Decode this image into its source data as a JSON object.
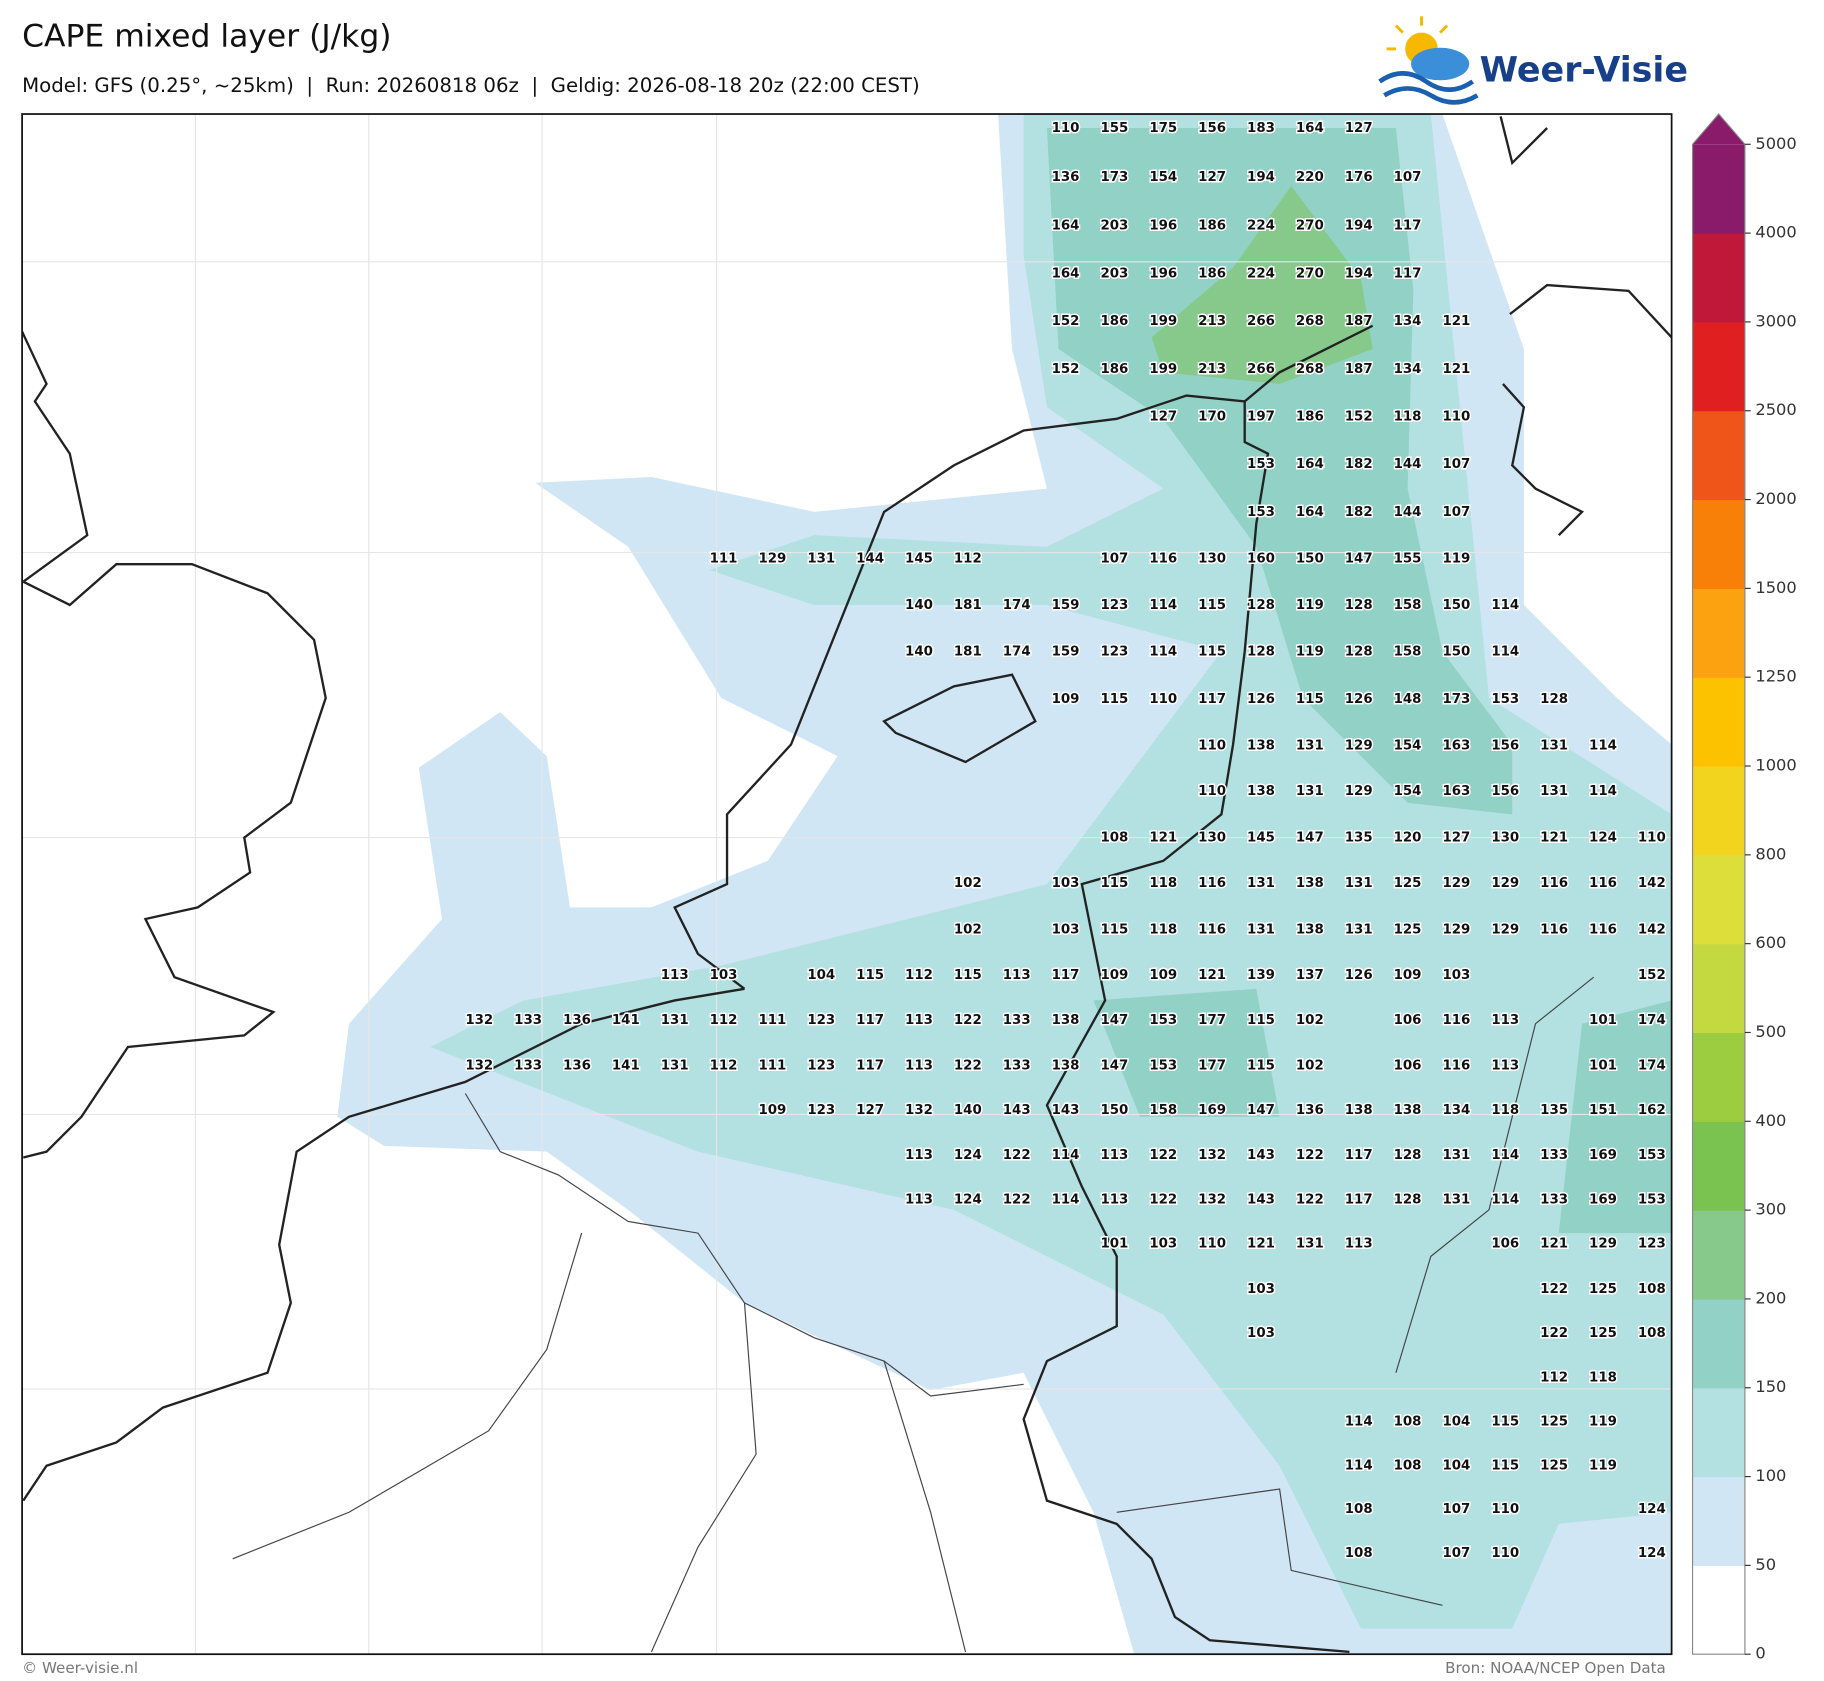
{
  "header": {
    "title": "CAPE mixed layer (J/kg)",
    "subtitle": "Model: GFS (0.25°, ~25km)  |  Run: 20260818 06z  |  Geldig: 2026-08-18 20z (22:00 CEST)"
  },
  "logo": {
    "text": "Weer-Visie"
  },
  "map": {
    "rows": [
      [
        null,
        null,
        null,
        null,
        null,
        null,
        null,
        null,
        null,
        null,
        null,
        null,
        110,
        155,
        175,
        156,
        183,
        164,
        127,
        null,
        null,
        null,
        null,
        null,
        null
      ],
      [
        null,
        null,
        null,
        null,
        null,
        null,
        null,
        null,
        null,
        null,
        null,
        null,
        136,
        173,
        154,
        127,
        194,
        220,
        176,
        107,
        null,
        null,
        null,
        null,
        null
      ],
      [
        null,
        null,
        null,
        null,
        null,
        null,
        null,
        null,
        null,
        null,
        null,
        null,
        164,
        203,
        196,
        186,
        224,
        270,
        194,
        117,
        null,
        null,
        null,
        null,
        null
      ],
      [
        null,
        null,
        null,
        null,
        null,
        null,
        null,
        null,
        null,
        null,
        null,
        null,
        164,
        203,
        196,
        186,
        224,
        270,
        194,
        117,
        null,
        null,
        null,
        null,
        null
      ],
      [
        null,
        null,
        null,
        null,
        null,
        null,
        null,
        null,
        null,
        null,
        null,
        null,
        152,
        186,
        199,
        213,
        266,
        268,
        187,
        134,
        121,
        null,
        null,
        null,
        null
      ],
      [
        null,
        null,
        null,
        null,
        null,
        null,
        null,
        null,
        null,
        null,
        null,
        null,
        152,
        186,
        199,
        213,
        266,
        268,
        187,
        134,
        121,
        null,
        null,
        null,
        null
      ],
      [
        null,
        null,
        null,
        null,
        null,
        null,
        null,
        null,
        null,
        null,
        null,
        null,
        null,
        null,
        127,
        170,
        197,
        186,
        152,
        118,
        110,
        null,
        null,
        null,
        null
      ],
      [
        null,
        null,
        null,
        null,
        null,
        null,
        null,
        null,
        null,
        null,
        null,
        null,
        null,
        null,
        null,
        null,
        153,
        164,
        182,
        144,
        107,
        null,
        null,
        null,
        null
      ],
      [
        null,
        null,
        null,
        null,
        null,
        null,
        null,
        null,
        null,
        null,
        null,
        null,
        null,
        null,
        null,
        null,
        153,
        164,
        182,
        144,
        107,
        null,
        null,
        null,
        null
      ],
      [
        null,
        null,
        null,
        null,
        null,
        111,
        129,
        131,
        144,
        145,
        112,
        null,
        null,
        107,
        116,
        130,
        160,
        150,
        147,
        155,
        119,
        null,
        null,
        null,
        null
      ],
      [
        null,
        null,
        null,
        null,
        null,
        null,
        null,
        null,
        null,
        140,
        181,
        174,
        159,
        123,
        114,
        115,
        128,
        119,
        128,
        158,
        150,
        114,
        null,
        null,
        null
      ],
      [
        null,
        null,
        null,
        null,
        null,
        null,
        null,
        null,
        null,
        140,
        181,
        174,
        159,
        123,
        114,
        115,
        128,
        119,
        128,
        158,
        150,
        114,
        null,
        null,
        null
      ],
      [
        null,
        null,
        null,
        null,
        null,
        null,
        null,
        null,
        null,
        null,
        null,
        null,
        109,
        115,
        110,
        117,
        126,
        115,
        126,
        148,
        173,
        153,
        128,
        null,
        null
      ],
      [
        null,
        null,
        null,
        null,
        null,
        null,
        null,
        null,
        null,
        null,
        null,
        null,
        null,
        null,
        null,
        110,
        138,
        131,
        129,
        154,
        163,
        156,
        131,
        114,
        null
      ],
      [
        null,
        null,
        null,
        null,
        null,
        null,
        null,
        null,
        null,
        null,
        null,
        null,
        null,
        null,
        null,
        110,
        138,
        131,
        129,
        154,
        163,
        156,
        131,
        114,
        null
      ],
      [
        null,
        null,
        null,
        null,
        null,
        null,
        null,
        null,
        null,
        null,
        null,
        null,
        null,
        108,
        121,
        130,
        145,
        147,
        135,
        120,
        127,
        130,
        121,
        124,
        110
      ],
      [
        null,
        null,
        null,
        null,
        null,
        null,
        null,
        null,
        null,
        null,
        102,
        null,
        103,
        115,
        118,
        116,
        131,
        138,
        131,
        125,
        129,
        129,
        116,
        116,
        142
      ],
      [
        null,
        null,
        null,
        null,
        null,
        null,
        null,
        null,
        null,
        null,
        102,
        null,
        103,
        115,
        118,
        116,
        131,
        138,
        131,
        125,
        129,
        129,
        116,
        116,
        142
      ],
      [
        null,
        null,
        null,
        null,
        113,
        103,
        null,
        104,
        115,
        112,
        115,
        113,
        117,
        109,
        109,
        121,
        139,
        137,
        126,
        109,
        103,
        null,
        null,
        null,
        152
      ],
      [
        132,
        133,
        136,
        141,
        131,
        112,
        111,
        123,
        117,
        113,
        122,
        133,
        138,
        147,
        153,
        177,
        115,
        102,
        null,
        106,
        116,
        113,
        null,
        101,
        174
      ],
      [
        132,
        133,
        136,
        141,
        131,
        112,
        111,
        123,
        117,
        113,
        122,
        133,
        138,
        147,
        153,
        177,
        115,
        102,
        null,
        106,
        116,
        113,
        null,
        101,
        174
      ],
      [
        null,
        null,
        null,
        null,
        null,
        null,
        109,
        123,
        127,
        132,
        140,
        143,
        143,
        150,
        158,
        169,
        147,
        136,
        138,
        138,
        134,
        118,
        135,
        151,
        162
      ],
      [
        null,
        null,
        null,
        null,
        null,
        null,
        null,
        null,
        null,
        113,
        124,
        122,
        114,
        113,
        122,
        132,
        143,
        122,
        117,
        128,
        131,
        114,
        133,
        169,
        153
      ],
      [
        null,
        null,
        null,
        null,
        null,
        null,
        null,
        null,
        null,
        113,
        124,
        122,
        114,
        113,
        122,
        132,
        143,
        122,
        117,
        128,
        131,
        114,
        133,
        169,
        153
      ],
      [
        null,
        null,
        null,
        null,
        null,
        null,
        null,
        null,
        null,
        null,
        null,
        null,
        null,
        101,
        103,
        110,
        121,
        131,
        113,
        null,
        null,
        106,
        121,
        129,
        123
      ],
      [
        null,
        null,
        null,
        null,
        null,
        null,
        null,
        null,
        null,
        null,
        null,
        null,
        null,
        null,
        null,
        null,
        103,
        null,
        null,
        null,
        null,
        null,
        122,
        125,
        108
      ],
      [
        null,
        null,
        null,
        null,
        null,
        null,
        null,
        null,
        null,
        null,
        null,
        null,
        null,
        null,
        null,
        null,
        103,
        null,
        null,
        null,
        null,
        null,
        122,
        125,
        108
      ],
      [
        null,
        null,
        null,
        null,
        null,
        null,
        null,
        null,
        null,
        null,
        null,
        null,
        null,
        null,
        null,
        null,
        null,
        null,
        null,
        null,
        null,
        null,
        112,
        118,
        null
      ],
      [
        null,
        null,
        null,
        null,
        null,
        null,
        null,
        null,
        null,
        null,
        null,
        null,
        null,
        null,
        null,
        null,
        null,
        null,
        114,
        108,
        104,
        115,
        125,
        119,
        null
      ],
      [
        null,
        null,
        null,
        null,
        null,
        null,
        null,
        null,
        null,
        null,
        null,
        null,
        null,
        null,
        null,
        null,
        null,
        null,
        114,
        108,
        104,
        115,
        125,
        119,
        null
      ],
      [
        null,
        null,
        null,
        null,
        null,
        null,
        null,
        null,
        null,
        null,
        null,
        null,
        null,
        null,
        null,
        null,
        null,
        null,
        108,
        null,
        107,
        110,
        null,
        null,
        124
      ],
      [
        null,
        null,
        null,
        null,
        null,
        null,
        null,
        null,
        null,
        null,
        null,
        null,
        null,
        null,
        null,
        null,
        null,
        null,
        108,
        null,
        107,
        110,
        null,
        null,
        124
      ]
    ]
  },
  "colorbar": {
    "ticks": [
      0,
      50,
      100,
      150,
      200,
      300,
      400,
      500,
      600,
      800,
      1000,
      1250,
      1500,
      2000,
      2500,
      3000,
      4000,
      5000
    ],
    "colors": [
      "#ffffff",
      "#d0e6f5",
      "#b3e0e0",
      "#92d1c5",
      "#86c98a",
      "#7bc350",
      "#9ccc40",
      "#c4d840",
      "#dede3a",
      "#f2d41e",
      "#fcc200",
      "#fca110",
      "#f98008",
      "#ef5418",
      "#e02020",
      "#bf1838",
      "#8a1a6a"
    ]
  },
  "footer": {
    "copyright": "© Weer-visie.nl",
    "source": "Bron: NOAA/NCEP Open Data"
  }
}
